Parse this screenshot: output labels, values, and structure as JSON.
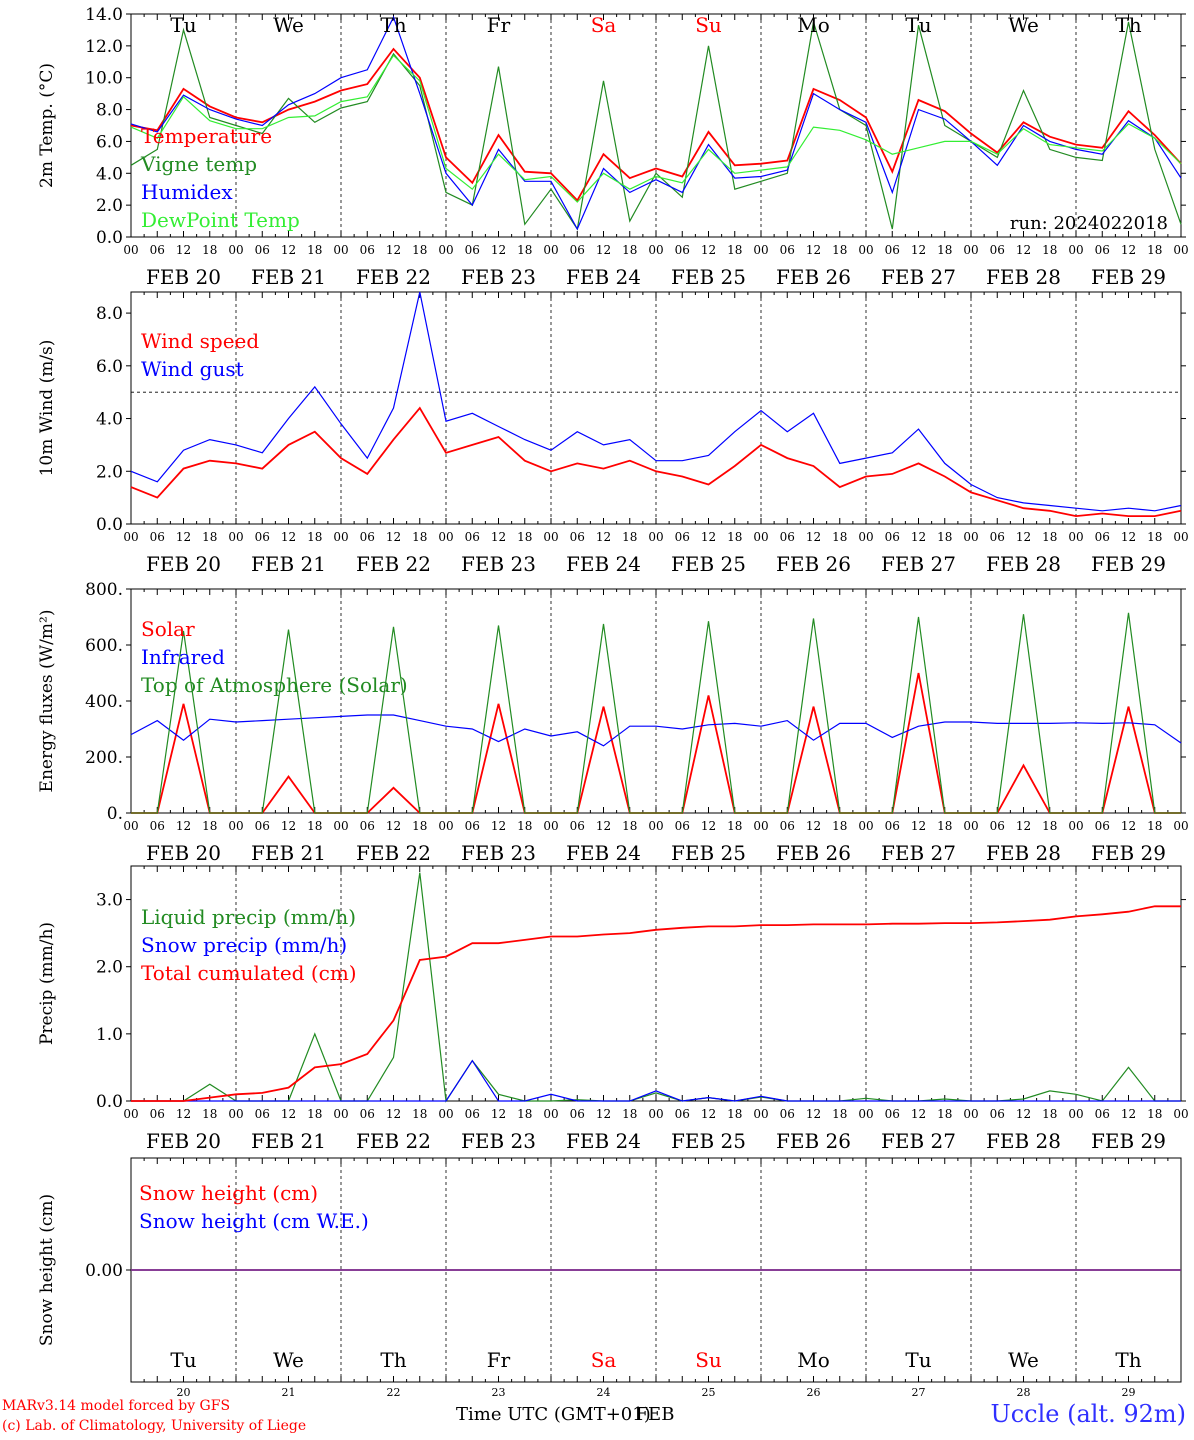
{
  "colors": {
    "red": "#ff0000",
    "green": "#228b22",
    "blue": "#0000ff",
    "lightgreen": "#33ee33",
    "purple": "#7b2a8c",
    "red_day": "#ff0000",
    "black": "#000000",
    "brand": "#3030ff"
  },
  "days": [
    "Tu",
    "We",
    "Th",
    "Fr",
    "Sa",
    "Su",
    "Mo",
    "Tu",
    "We",
    "Th"
  ],
  "weekend_days": [
    "Sa",
    "Su"
  ],
  "dates": [
    "FEB 20",
    "FEB 21",
    "FEB 22",
    "FEB 23",
    "FEB 24",
    "FEB 25",
    "FEB 26",
    "FEB 27",
    "FEB 28",
    "FEB 29"
  ],
  "date_numbers": [
    "20",
    "21",
    "22",
    "23",
    "24",
    "25",
    "26",
    "27",
    "28",
    "29"
  ],
  "hour_ticks": [
    "00",
    "06",
    "12",
    "18"
  ],
  "footer": {
    "model_line1": "MARv3.14 model forced by GFS",
    "model_line2": "(c) Lab. of Climatology, University of Liege",
    "time_axis": "Time UTC (GMT+01)",
    "time_axis_overlap": "FEB",
    "station": "Uccle (alt. 92m)"
  },
  "chart_data": [
    {
      "type": "line",
      "ylabel": "2m Temp. (°C)",
      "ylim": [
        0,
        14
      ],
      "yticks": [
        "0.0",
        "2.0",
        "4.0",
        "6.0",
        "8.0",
        "10.0",
        "12.0",
        "14.0"
      ],
      "annotation": "run: 2024022018",
      "x_hours": [
        0,
        6,
        12,
        18,
        24,
        30,
        36,
        42,
        48,
        54,
        60,
        66,
        72,
        78,
        84,
        90,
        96,
        102,
        108,
        114,
        120,
        126,
        132,
        138,
        144,
        150,
        156,
        162,
        168,
        174,
        180,
        186,
        192,
        198,
        204,
        210,
        216,
        222,
        228,
        234,
        240
      ],
      "series": [
        {
          "name": "Temperature",
          "color": "red",
          "values": [
            7.0,
            6.7,
            9.3,
            8.2,
            7.5,
            7.2,
            8.0,
            8.5,
            9.2,
            9.6,
            11.8,
            10.0,
            5.0,
            3.4,
            6.4,
            4.1,
            4.0,
            2.3,
            5.2,
            3.7,
            4.3,
            3.8,
            6.6,
            4.5,
            4.6,
            4.8,
            9.3,
            8.6,
            7.5,
            4.1,
            8.6,
            7.9,
            6.5,
            5.3,
            7.2,
            6.3,
            5.8,
            5.6,
            7.9,
            6.4,
            4.6
          ]
        },
        {
          "name": "Vigne temp",
          "color": "green",
          "values": [
            4.5,
            5.5,
            13.0,
            7.5,
            7.0,
            6.5,
            8.7,
            7.2,
            8.1,
            8.5,
            11.5,
            9.5,
            2.8,
            2.0,
            10.7,
            0.8,
            3.0,
            0.5,
            9.8,
            1.0,
            4.0,
            2.5,
            12.0,
            3.0,
            3.5,
            4.0,
            13.5,
            8.0,
            7.0,
            0.5,
            13.3,
            7.0,
            6.0,
            5.0,
            9.2,
            5.5,
            5.0,
            4.8,
            13.5,
            5.5,
            0.8
          ]
        },
        {
          "name": "Humidex",
          "color": "blue",
          "values": [
            7.1,
            6.6,
            8.9,
            8.0,
            7.4,
            7.0,
            8.3,
            9.0,
            10.0,
            10.5,
            13.8,
            9.0,
            4.0,
            2.0,
            5.5,
            3.5,
            3.5,
            0.5,
            4.3,
            2.8,
            3.6,
            2.8,
            5.8,
            3.7,
            3.8,
            4.2,
            9.0,
            8.0,
            7.2,
            2.8,
            8.0,
            7.4,
            6.0,
            4.5,
            7.0,
            6.0,
            5.5,
            5.2,
            7.3,
            6.2,
            3.7
          ]
        },
        {
          "name": "DewPoint Temp",
          "color": "lightgreen",
          "values": [
            6.9,
            6.2,
            8.8,
            7.3,
            6.8,
            6.8,
            7.5,
            7.6,
            8.5,
            8.8,
            11.4,
            9.8,
            4.3,
            3.0,
            5.2,
            3.6,
            3.8,
            2.2,
            4.0,
            3.0,
            3.8,
            3.4,
            5.5,
            4.0,
            4.2,
            4.4,
            6.9,
            6.7,
            6.1,
            5.2,
            5.6,
            6.0,
            6.0,
            5.2,
            6.8,
            5.8,
            5.6,
            5.4,
            7.1,
            6.2,
            4.6
          ]
        }
      ]
    },
    {
      "type": "line",
      "ylabel": "10m Wind (m/s)",
      "ylim": [
        0,
        8.8
      ],
      "yticks": [
        "0.0",
        "2.0",
        "4.0",
        "6.0",
        "8.0"
      ],
      "reference_line": 5.0,
      "x_hours": [
        0,
        6,
        12,
        18,
        24,
        30,
        36,
        42,
        48,
        54,
        60,
        66,
        72,
        78,
        84,
        90,
        96,
        102,
        108,
        114,
        120,
        126,
        132,
        138,
        144,
        150,
        156,
        162,
        168,
        174,
        180,
        186,
        192,
        198,
        204,
        210,
        216,
        222,
        228,
        234,
        240
      ],
      "series": [
        {
          "name": "Wind speed",
          "color": "red",
          "values": [
            1.4,
            1.0,
            2.1,
            2.4,
            2.3,
            2.1,
            3.0,
            3.5,
            2.5,
            1.9,
            3.2,
            4.4,
            2.7,
            3.0,
            3.3,
            2.4,
            2.0,
            2.3,
            2.1,
            2.4,
            2.0,
            1.8,
            1.5,
            2.2,
            3.0,
            2.5,
            2.2,
            1.4,
            1.8,
            1.9,
            2.3,
            1.8,
            1.2,
            0.9,
            0.6,
            0.5,
            0.3,
            0.4,
            0.3,
            0.3,
            0.5
          ]
        },
        {
          "name": "Wind gust",
          "color": "blue",
          "values": [
            2.0,
            1.6,
            2.8,
            3.2,
            3.0,
            2.7,
            4.0,
            5.2,
            3.8,
            2.5,
            4.4,
            8.8,
            3.9,
            4.2,
            3.7,
            3.2,
            2.8,
            3.5,
            3.0,
            3.2,
            2.4,
            2.4,
            2.6,
            3.5,
            4.3,
            3.5,
            4.2,
            2.3,
            2.5,
            2.7,
            3.6,
            2.3,
            1.5,
            1.0,
            0.8,
            0.7,
            0.6,
            0.5,
            0.6,
            0.5,
            0.7
          ]
        }
      ]
    },
    {
      "type": "line",
      "ylabel": "Energy fluxes (W/m²)",
      "ylim": [
        0,
        800
      ],
      "yticks": [
        "0.",
        "200.",
        "400.",
        "600.",
        "800."
      ],
      "x_hours": [
        0,
        6,
        12,
        18,
        24,
        30,
        36,
        42,
        48,
        54,
        60,
        66,
        72,
        78,
        84,
        90,
        96,
        102,
        108,
        114,
        120,
        126,
        132,
        138,
        144,
        150,
        156,
        162,
        168,
        174,
        180,
        186,
        192,
        198,
        204,
        210,
        216,
        222,
        228,
        234,
        240
      ],
      "series": [
        {
          "name": "Solar",
          "color": "red",
          "values": [
            0,
            0,
            390,
            0,
            0,
            0,
            130,
            0,
            0,
            0,
            90,
            0,
            0,
            0,
            390,
            0,
            0,
            0,
            380,
            0,
            0,
            0,
            420,
            0,
            0,
            0,
            380,
            0,
            0,
            0,
            500,
            0,
            0,
            0,
            170,
            0,
            0,
            0,
            380,
            0,
            0
          ]
        },
        {
          "name": "Infrared",
          "color": "blue",
          "values": [
            280,
            330,
            260,
            335,
            325,
            330,
            335,
            340,
            345,
            350,
            350,
            330,
            310,
            300,
            255,
            300,
            275,
            290,
            240,
            310,
            310,
            300,
            315,
            320,
            310,
            330,
            260,
            320,
            320,
            270,
            310,
            325,
            325,
            320,
            320,
            320,
            322,
            320,
            322,
            315,
            250
          ]
        },
        {
          "name": "Top of Atmosphere (Solar)",
          "color": "green",
          "values": [
            0,
            0,
            650,
            0,
            0,
            0,
            655,
            0,
            0,
            0,
            665,
            0,
            0,
            0,
            670,
            0,
            0,
            0,
            675,
            0,
            0,
            0,
            685,
            0,
            0,
            0,
            695,
            0,
            0,
            0,
            700,
            0,
            0,
            0,
            710,
            0,
            0,
            0,
            715,
            0,
            0
          ]
        }
      ]
    },
    {
      "type": "line",
      "ylabel": "Precip (mm/h)",
      "ylim": [
        0,
        3.5
      ],
      "yticks": [
        "0.0",
        "1.0",
        "2.0",
        "3.0"
      ],
      "x_hours": [
        0,
        6,
        12,
        18,
        24,
        30,
        36,
        42,
        48,
        54,
        60,
        66,
        72,
        78,
        84,
        90,
        96,
        102,
        108,
        114,
        120,
        126,
        132,
        138,
        144,
        150,
        156,
        162,
        168,
        174,
        180,
        186,
        192,
        198,
        204,
        210,
        216,
        222,
        228,
        234,
        240
      ],
      "series": [
        {
          "name": "Liquid precip (mm/h)",
          "color": "green",
          "values": [
            0,
            0,
            0,
            0.25,
            0,
            0,
            0,
            1.0,
            0,
            0,
            0.65,
            3.4,
            0,
            0.6,
            0.1,
            0,
            0,
            0.02,
            0,
            0,
            0.12,
            0,
            0.05,
            0,
            0.06,
            0,
            0,
            0,
            0.04,
            0,
            0,
            0.03,
            0,
            0,
            0.03,
            0.15,
            0.1,
            0,
            0.5,
            0,
            0
          ]
        },
        {
          "name": "Snow precip (mm/h)",
          "color": "blue",
          "values": [
            0,
            0,
            0,
            0,
            0,
            0,
            0,
            0,
            0,
            0,
            0,
            0,
            0,
            0.6,
            0,
            0,
            0.1,
            0,
            0,
            0,
            0.15,
            0,
            0.05,
            0,
            0.07,
            0,
            0,
            0,
            0,
            0,
            0,
            0,
            0,
            0,
            0,
            0,
            0,
            0,
            0,
            0,
            0
          ]
        },
        {
          "name": "Total cumulated (cm)",
          "color": "red",
          "values": [
            0,
            0,
            0,
            0.05,
            0.1,
            0.12,
            0.2,
            0.5,
            0.55,
            0.7,
            1.2,
            2.1,
            2.15,
            2.35,
            2.35,
            2.4,
            2.45,
            2.45,
            2.48,
            2.5,
            2.55,
            2.58,
            2.6,
            2.6,
            2.62,
            2.62,
            2.63,
            2.63,
            2.63,
            2.64,
            2.64,
            2.65,
            2.65,
            2.66,
            2.68,
            2.7,
            2.75,
            2.78,
            2.82,
            2.9,
            2.9
          ]
        }
      ]
    },
    {
      "type": "line",
      "ylabel": "Snow height (cm)",
      "ylim": [
        -1,
        1
      ],
      "yticks": [
        "0.00"
      ],
      "x_hours": [
        0,
        240
      ],
      "series": [
        {
          "name": "Snow height (cm)",
          "color": "red",
          "values": [
            0,
            0
          ]
        },
        {
          "name": "Snow height (cm W.E.)",
          "color": "blue",
          "values": [
            0,
            0
          ]
        }
      ]
    }
  ]
}
